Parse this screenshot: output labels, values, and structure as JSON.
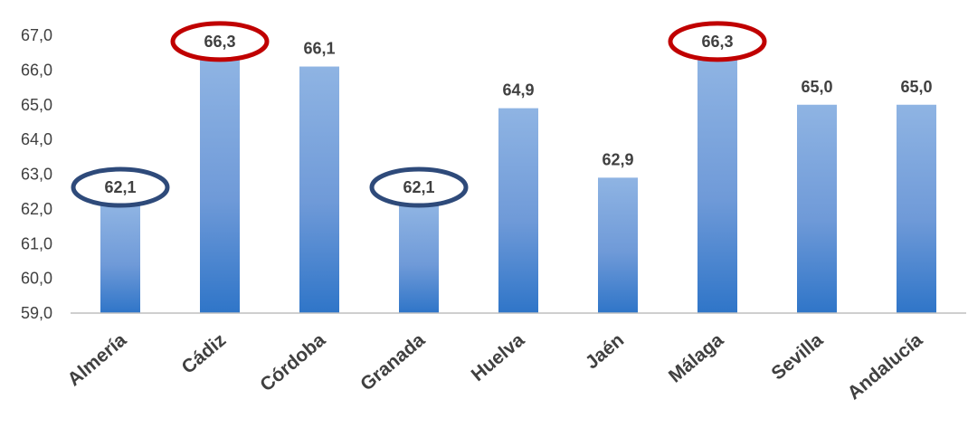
{
  "chart_data": {
    "type": "bar",
    "categories": [
      "Almería",
      "Cádiz",
      "Córdoba",
      "Granada",
      "Huelva",
      "Jaén",
      "Málaga",
      "Sevilla",
      "Andalucía"
    ],
    "values": [
      62.1,
      66.3,
      66.1,
      62.1,
      64.9,
      62.9,
      66.3,
      65.0,
      65.0
    ],
    "data_labels": [
      "62,1",
      "66,3",
      "66,1",
      "62,1",
      "64,9",
      "62,9",
      "66,3",
      "65,0",
      "65,0"
    ],
    "title": "",
    "xlabel": "",
    "ylabel": "",
    "ylim": [
      59,
      67
    ],
    "yticks": [
      59,
      60,
      61,
      62,
      63,
      64,
      65,
      66,
      67
    ],
    "ytick_labels": [
      "59,0",
      "60,0",
      "61,0",
      "62,0",
      "63,0",
      "64,0",
      "65,0",
      "66,0",
      "67,0"
    ],
    "grid": false,
    "legend": "none",
    "bar_color_top": "#8fb4e3",
    "bar_color_bottom": "#2f75c8",
    "highlight_max_color": "#c00000",
    "highlight_min_color": "#2e4a7a",
    "highlight_max_indices": [
      1,
      6
    ],
    "highlight_min_indices": [
      0,
      3
    ]
  }
}
